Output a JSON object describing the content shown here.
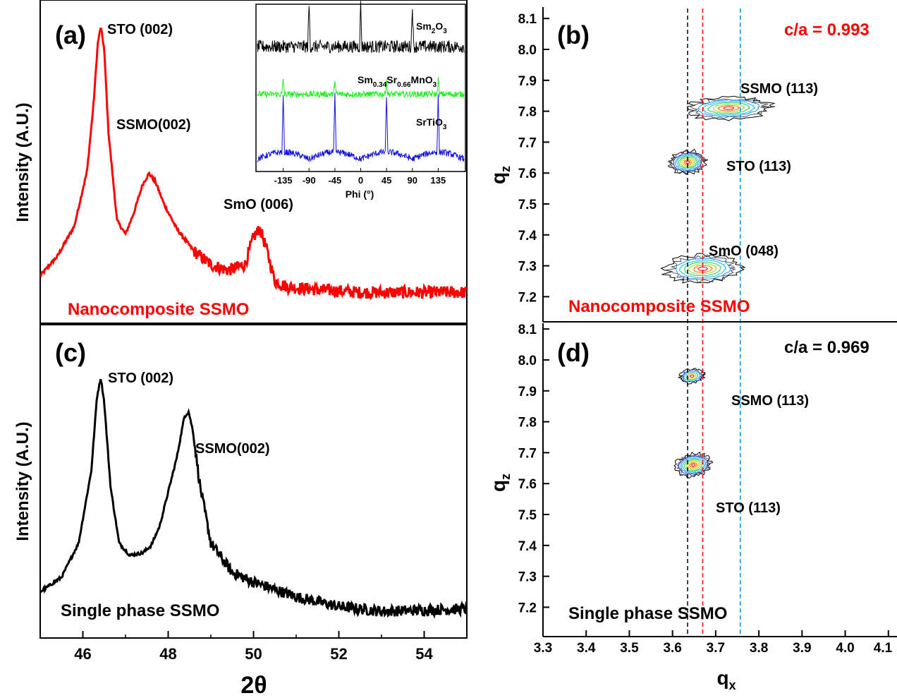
{
  "figure": {
    "left_ylabel": "Intensity (A.U.)",
    "left_xlabel": "2θ",
    "right_ylabel": "q",
    "right_ylabel_sub": "z",
    "right_xlabel": "q",
    "right_xlabel_sub": "x"
  },
  "colors": {
    "red": "#ff0000",
    "black": "#000000",
    "green": "#22ee22",
    "blue": "#1010e0",
    "cyan_line": "#1a8fd0"
  },
  "chart_data": [
    {
      "id": "a",
      "type": "line",
      "panel_label": "(a)",
      "xlim": [
        45,
        55
      ],
      "x_ticks": [],
      "series": [
        {
          "color": "#ff0000",
          "x": [
            45.0,
            45.4,
            45.8,
            46.1,
            46.25,
            46.35,
            46.42,
            46.5,
            46.6,
            46.8,
            47.0,
            47.2,
            47.4,
            47.55,
            47.7,
            47.9,
            48.2,
            48.6,
            49.0,
            49.4,
            49.8,
            50.0,
            50.15,
            50.3,
            50.5,
            50.8,
            51.5,
            52.5,
            53.5,
            55.0
          ],
          "y": [
            0.1,
            0.17,
            0.28,
            0.48,
            0.72,
            0.94,
            1.0,
            0.92,
            0.62,
            0.3,
            0.25,
            0.33,
            0.43,
            0.47,
            0.44,
            0.36,
            0.27,
            0.19,
            0.14,
            0.12,
            0.14,
            0.24,
            0.27,
            0.2,
            0.08,
            0.06,
            0.05,
            0.04,
            0.04,
            0.04
          ]
        }
      ],
      "annotations": [
        {
          "text": "STO (002)"
        },
        {
          "text": "SSMO(002)"
        },
        {
          "text": "SmO (006)"
        },
        {
          "text": "Nanocomposite SSMO",
          "color": "#ff0000"
        }
      ],
      "inset": {
        "xlabel": "Phi (°)",
        "x_ticks": [
          "-135",
          "-90",
          "-45",
          "0",
          "45",
          "90",
          "135"
        ],
        "traces": [
          {
            "label": "Sm",
            "label_sub": "2",
            "label_tail": "O",
            "label_sub2": "3",
            "color": "#000000",
            "peaks": [
              -90,
              0,
              90
            ]
          },
          {
            "label": "Sm",
            "label_sub": "0.34",
            "label_tail": "Sr",
            "label_sub2": "0.66",
            "label_tail2": "MnO",
            "label_sub3": "3",
            "color": "#22ee22",
            "peaks": [
              -135,
              -45,
              45,
              135
            ]
          },
          {
            "label": "SrTiO",
            "label_sub": "3",
            "color": "#1010e0",
            "peaks": [
              -135,
              -45,
              45,
              135
            ]
          }
        ]
      }
    },
    {
      "id": "c",
      "type": "line",
      "panel_label": "(c)",
      "xlim": [
        45,
        55
      ],
      "x_ticks": [
        "46",
        "48",
        "50",
        "52",
        "54"
      ],
      "series": [
        {
          "color": "#000000",
          "x": [
            45.0,
            45.5,
            45.9,
            46.2,
            46.33,
            46.42,
            46.5,
            46.65,
            46.85,
            47.1,
            47.4,
            47.6,
            47.8,
            48.0,
            48.2,
            48.38,
            48.48,
            48.58,
            48.75,
            49.0,
            49.5,
            50.0,
            51.0,
            52.0,
            53.0,
            55.0
          ],
          "y": [
            0.12,
            0.18,
            0.32,
            0.62,
            0.92,
            1.0,
            0.9,
            0.55,
            0.32,
            0.27,
            0.28,
            0.31,
            0.39,
            0.53,
            0.67,
            0.84,
            0.86,
            0.78,
            0.55,
            0.32,
            0.2,
            0.16,
            0.1,
            0.06,
            0.04,
            0.05
          ]
        }
      ],
      "annotations": [
        {
          "text": "STO (002)"
        },
        {
          "text": "SSMO(002)"
        },
        {
          "text": "Single phase SSMO"
        }
      ]
    },
    {
      "id": "b",
      "type": "heatmap",
      "panel_label": "(b)",
      "ratio": "c/a = 0.993",
      "ratio_color": "#ff0000",
      "ylim": [
        7.15,
        8.12
      ],
      "y_ticks": [
        "7.2",
        "7.3",
        "7.4",
        "7.5",
        "7.6",
        "7.7",
        "7.8",
        "7.9",
        "8.0",
        "8.1"
      ],
      "peaks": [
        {
          "label": "SSMO (113)",
          "qx": 3.73,
          "qz": 7.81,
          "rx": 0.095,
          "ry": 0.035,
          "kind": "broad"
        },
        {
          "label": "STO (113)",
          "qx": 3.635,
          "qz": 7.635,
          "rx": 0.045,
          "ry": 0.04,
          "kind": "sharp"
        },
        {
          "label": "SmO (048)",
          "qx": 3.67,
          "qz": 7.29,
          "rx": 0.085,
          "ry": 0.045,
          "kind": "broad"
        }
      ],
      "footer": "Nanocomposite SSMO",
      "footer_color": "#ff0000",
      "vlines": [
        3.635,
        3.67,
        3.757
      ]
    },
    {
      "id": "d",
      "type": "heatmap",
      "panel_label": "(d)",
      "ratio": "c/a = 0.969",
      "ratio_color": "#000000",
      "ylim": [
        7.15,
        8.12
      ],
      "xlim": [
        3.3,
        4.12
      ],
      "x_ticks": [
        "3.3",
        "3.4",
        "3.5",
        "3.6",
        "3.7",
        "3.8",
        "3.9",
        "4.0",
        "4.1"
      ],
      "y_ticks": [
        "7.2",
        "7.3",
        "7.4",
        "7.5",
        "7.6",
        "7.7",
        "7.8",
        "7.9",
        "8.0",
        "8.1"
      ],
      "peaks": [
        {
          "label": "SSMO (113)",
          "qx": 3.645,
          "qz": 7.948,
          "rx": 0.03,
          "ry": 0.025,
          "kind": "small"
        },
        {
          "label": "STO (113)",
          "qx": 3.648,
          "qz": 7.66,
          "rx": 0.045,
          "ry": 0.04,
          "kind": "sharp"
        }
      ],
      "footer": "Single phase SSMO",
      "footer_color": "#000000",
      "vlines": [
        3.635,
        3.67,
        3.757
      ]
    }
  ]
}
